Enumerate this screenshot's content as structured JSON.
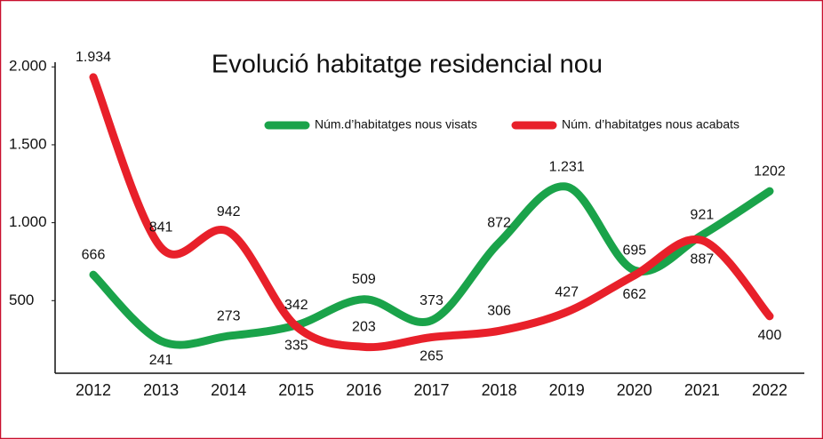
{
  "chart_data": {
    "type": "line",
    "title": "Evolució habitatge residencial nou",
    "categories": [
      "2012",
      "2013",
      "2014",
      "2015",
      "2016",
      "2017",
      "2018",
      "2019",
      "2020",
      "2021",
      "2022"
    ],
    "series": [
      {
        "name": "Núm.d’habitatges nous visats",
        "color": "#1aa34a",
        "values": [
          666,
          241,
          273,
          342,
          509,
          373,
          872,
          1231,
          695,
          921,
          1202
        ],
        "value_labels": [
          "666",
          "241",
          "273",
          "342",
          "509",
          "373",
          "872",
          "1.231",
          "695",
          "921",
          "1202"
        ]
      },
      {
        "name": "Núm. d’habitatges nous acabats",
        "color": "#e8202a",
        "values": [
          1934,
          841,
          942,
          335,
          203,
          265,
          306,
          427,
          662,
          887,
          400
        ],
        "value_labels": [
          "1.934",
          "841",
          "942",
          "335",
          "203",
          "265",
          "306",
          "427",
          "662",
          "887",
          "400"
        ]
      }
    ],
    "ylim": [
      34,
      2030
    ],
    "yticks": [
      500,
      {
        "value": 1000,
        "label": "1.000"
      },
      {
        "value": 1500,
        "label": "1.500"
      },
      {
        "value": 2000,
        "label": "2.000"
      }
    ]
  }
}
